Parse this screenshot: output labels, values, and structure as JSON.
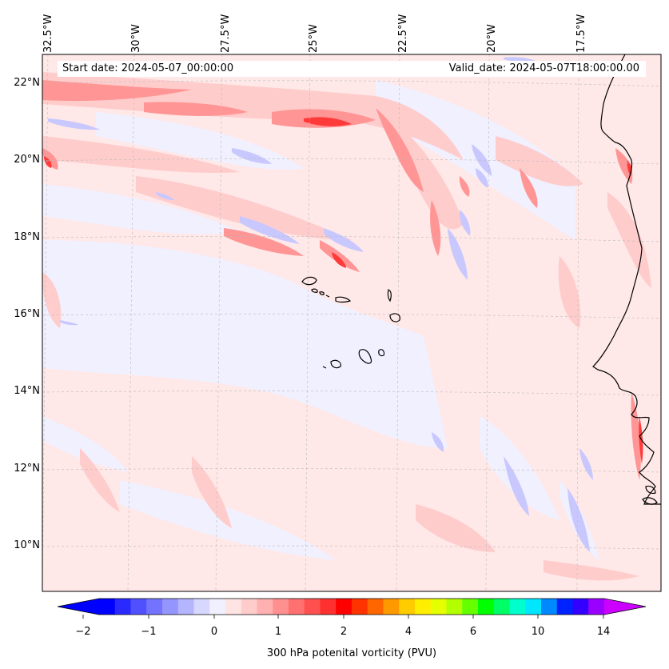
{
  "map": {
    "lon_labels": [
      "32.5°W",
      "30°W",
      "27.5°W",
      "25°W",
      "22.5°W",
      "20°W",
      "17.5°W"
    ],
    "lat_labels": [
      "22°N",
      "20°N",
      "18°N",
      "16°N",
      "14°N",
      "12°N",
      "10°N"
    ],
    "start_date": "Start date: 2024-05-07_00:00:00",
    "valid_date": "Valid_date: 2024-05-07T18:00:00.00"
  },
  "colorbar": {
    "tick_labels": [
      "−2",
      "−1",
      "0",
      "1",
      "2",
      "4",
      "6",
      "10",
      "14"
    ],
    "label": "300 hPa potenital vorticity (PVU)",
    "colors": [
      "#0000ff",
      "#2a2aff",
      "#5050ff",
      "#7373ff",
      "#9595ff",
      "#b4b4ff",
      "#d7d7ff",
      "#f0f0ff",
      "#ffe4e4",
      "#ffcccc",
      "#ffb0b0",
      "#ff9090",
      "#ff7070",
      "#ff5050",
      "#ff3030",
      "#ff0000",
      "#ff3300",
      "#ff6600",
      "#ff9900",
      "#ffcc00",
      "#ffee00",
      "#e6ff00",
      "#b3ff00",
      "#66ff00",
      "#00ff00",
      "#00ff66",
      "#00ffcc",
      "#00e6ff",
      "#0088ff",
      "#0022ff",
      "#3300ff",
      "#9900ff"
    ],
    "extend_low_color": "#0000ff",
    "extend_high_color": "#cc00ff"
  },
  "colors": {
    "background_pv": "#f0f0ff",
    "weak_positive": "#ffe4e4",
    "moderate_positive": "#ffb0b0",
    "strong_positive": "#ff3030",
    "weak_negative": "#d7d7ff",
    "moderate_negative": "#9595ff",
    "coastline": "#000000"
  }
}
